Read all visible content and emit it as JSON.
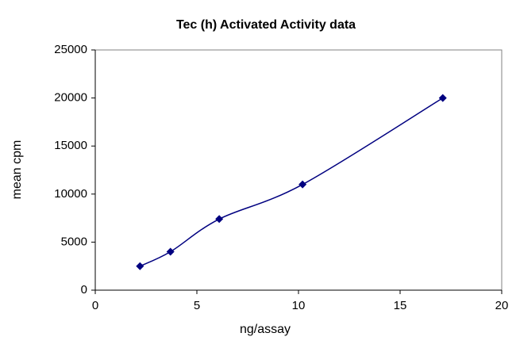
{
  "chart_data": {
    "type": "line",
    "title": "Tec (h) Activated Activity data",
    "x_label": "ng/assay",
    "y_label": "mean cpm",
    "x": [
      2.2,
      3.7,
      6.1,
      10.2,
      17.1
    ],
    "series": [
      {
        "name": "mean cpm",
        "color": "#000080",
        "values": [
          2500,
          4000,
          7400,
          11000,
          20000
        ]
      }
    ],
    "xlim": [
      0,
      20
    ],
    "xticks": [
      0,
      5,
      10,
      15,
      20
    ],
    "ylim": [
      0,
      25000
    ],
    "yticks": [
      0,
      5000,
      10000,
      15000,
      20000,
      25000
    ],
    "grid": false,
    "smooth": true
  }
}
